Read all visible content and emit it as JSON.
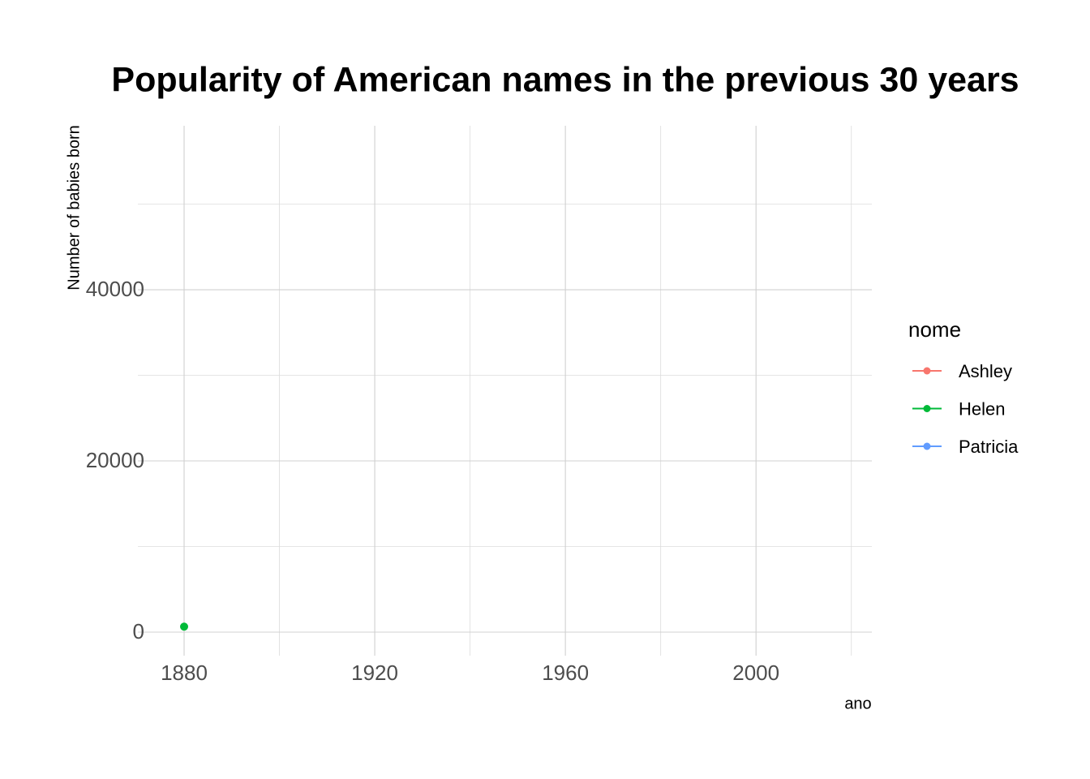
{
  "chart_data": {
    "type": "line",
    "title": "Popularity of American names in the previous 30 years",
    "x_label": "ano",
    "y_label": "Number of babies born",
    "legend_title": "nome",
    "series": [
      {
        "name": "Ashley",
        "color": "#F8766D",
        "x": [],
        "values": []
      },
      {
        "name": "Helen",
        "color": "#00BA38",
        "x": [
          1880
        ],
        "values": [
          640
        ]
      },
      {
        "name": "Patricia",
        "color": "#619CFF",
        "x": [],
        "values": []
      }
    ],
    "xlim": [
      1870.3,
      2024.3
    ],
    "ylim": [
      -2750,
      59150
    ],
    "xticks": [
      1880,
      1920,
      1960,
      2000
    ],
    "yticks": [
      0,
      20000,
      40000
    ],
    "minor_xticks": [
      1900,
      1940,
      1980,
      2020
    ],
    "minor_yticks": [
      10000,
      30000,
      50000
    ],
    "grid": true,
    "legend": "right"
  }
}
